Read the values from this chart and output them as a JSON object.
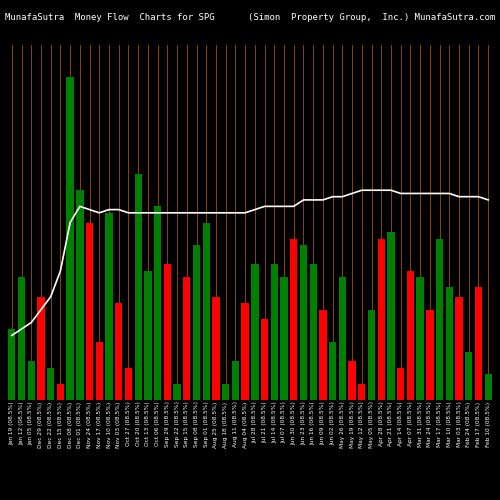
{
  "title_left": "MunafaSutra  Money Flow  Charts for SPG",
  "title_right": "(Simon  Property Group,  Inc.) MunafaSutra.com",
  "background_color": "#000000",
  "bar_colors_pattern": [
    "green",
    "green",
    "green",
    "red",
    "green",
    "red",
    "green",
    "green",
    "red",
    "red",
    "green",
    "red",
    "red",
    "green",
    "green",
    "green",
    "red",
    "green",
    "red",
    "green",
    "green",
    "red",
    "green",
    "green",
    "red",
    "green",
    "red",
    "green",
    "green",
    "red",
    "green",
    "green",
    "red",
    "green",
    "green",
    "red",
    "red",
    "green",
    "red",
    "green",
    "red",
    "red",
    "green",
    "red",
    "green",
    "green",
    "red",
    "green",
    "red",
    "green"
  ],
  "bar_heights": [
    22,
    38,
    12,
    32,
    10,
    5,
    100,
    65,
    55,
    18,
    58,
    30,
    10,
    70,
    40,
    60,
    42,
    5,
    38,
    48,
    55,
    32,
    5,
    12,
    30,
    42,
    25,
    42,
    38,
    50,
    48,
    42,
    28,
    18,
    38,
    12,
    5,
    28,
    50,
    52,
    10,
    40,
    38,
    28,
    50,
    35,
    32,
    15,
    35,
    8
  ],
  "line_values": [
    20,
    22,
    24,
    28,
    32,
    40,
    55,
    60,
    59,
    58,
    59,
    59,
    58,
    58,
    58,
    58,
    58,
    58,
    58,
    58,
    58,
    58,
    58,
    58,
    58,
    59,
    60,
    60,
    60,
    60,
    62,
    62,
    62,
    63,
    63,
    64,
    65,
    65,
    65,
    65,
    64,
    64,
    64,
    64,
    64,
    64,
    63,
    63,
    63,
    62
  ],
  "grid_color": "#8B4500",
  "line_color": "#ffffff",
  "x_labels": [
    "Jan 19 (08.5%)",
    "Jan 12 (08.5%)",
    "Jan 05 (08.5%)",
    "Dec 29 (08.5%)",
    "Dec 22 (08.5%)",
    "Dec 15 (08.5%)",
    "Dec 08 (08.5%)",
    "Dec 01 (08.5%)",
    "Nov 24 (08.5%)",
    "Nov 17 (08.5%)",
    "Nov 10 (08.5%)",
    "Nov 03 (08.5%)",
    "Oct 27 (08.5%)",
    "Oct 20 (08.5%)",
    "Oct 13 (08.5%)",
    "Oct 06 (08.5%)",
    "Sep 29 (08.5%)",
    "Sep 22 (08.5%)",
    "Sep 15 (08.5%)",
    "Sep 08 (08.5%)",
    "Sep 01 (08.5%)",
    "Aug 25 (08.5%)",
    "Aug 18 (08.5%)",
    "Aug 11 (08.5%)",
    "Aug 04 (08.5%)",
    "Jul 28 (08.5%)",
    "Jul 21 (08.5%)",
    "Jul 14 (08.5%)",
    "Jul 07 (08.5%)",
    "Jun 30 (08.5%)",
    "Jun 23 (08.5%)",
    "Jun 16 (08.5%)",
    "Jun 09 (08.5%)",
    "Jun 02 (08.5%)",
    "May 26 (08.5%)",
    "May 19 (08.5%)",
    "May 12 (08.5%)",
    "May 05 (08.5%)",
    "Apr 28 (08.5%)",
    "Apr 21 (08.5%)",
    "Apr 14 (08.5%)",
    "Apr 07 (08.5%)",
    "Mar 31 (08.5%)",
    "Mar 24 (08.5%)",
    "Mar 17 (08.5%)",
    "Mar 10 (08.5%)",
    "Mar 03 (08.5%)",
    "Feb 24 (08.5%)",
    "Feb 17 (08.5%)",
    "Feb 10 (08.5%)"
  ],
  "figsize": [
    5.0,
    5.0
  ],
  "dpi": 100,
  "ylim": [
    0,
    110
  ],
  "xlabel_fontsize": 4.2,
  "title_fontsize": 6.5
}
